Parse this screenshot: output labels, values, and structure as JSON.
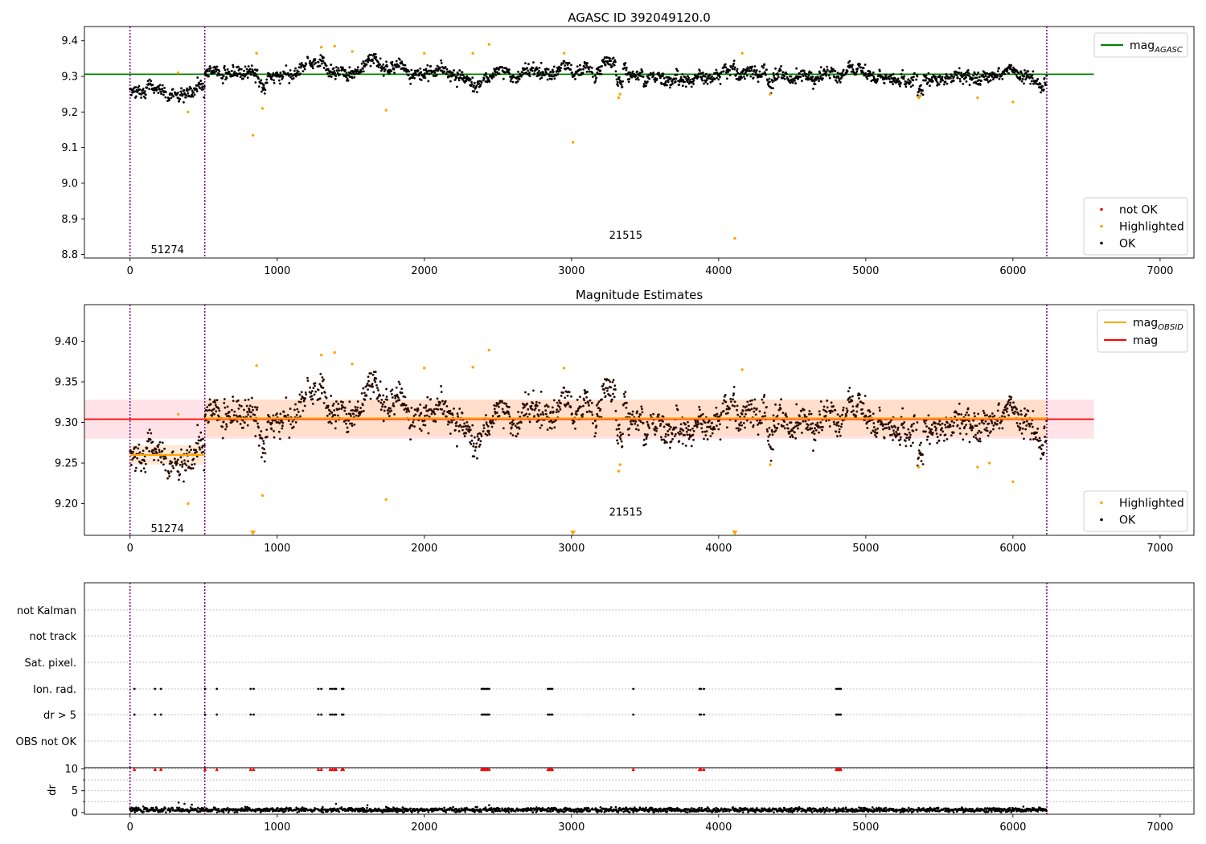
{
  "figure": {
    "background": "#ffffff"
  },
  "colors": {
    "ok": "#000000",
    "highlighted": "#ffa500",
    "not_ok": "#ff0000",
    "agasc_line": "#008000",
    "obsid_line": "#ffa500",
    "mag_line": "#ff0000",
    "obsid_boundary": "#800080",
    "mag_band": "#ffc0cb",
    "obsid_band": "#ffdab9",
    "grid": "#b0b0b0"
  },
  "chart_data": [
    {
      "id": "agasc-panel",
      "type": "scatter",
      "title": "AGASC ID 392049120.0",
      "xlim": [
        -310,
        7230
      ],
      "ylim": [
        8.79,
        9.44
      ],
      "xticks": [
        0,
        1000,
        2000,
        3000,
        4000,
        5000,
        6000,
        7000
      ],
      "yticks": [
        8.8,
        8.9,
        9.0,
        9.1,
        9.2,
        9.3,
        9.4
      ],
      "ytick_labels": [
        "8.8",
        "8.9",
        "9.0",
        "9.1",
        "9.2",
        "9.3",
        "9.4"
      ],
      "obsid_boundaries": [
        0,
        508,
        6230
      ],
      "annotations": [
        {
          "text": "51274",
          "x": 254,
          "y": 8.815
        },
        {
          "text": "21515",
          "x": 3369,
          "y": 8.855
        }
      ],
      "mag_agasc": {
        "x": [
          -310,
          6550
        ],
        "y": 9.306
      },
      "legend_upper": [
        {
          "label": "mag",
          "subscript": "AGASC",
          "color": "#008000",
          "kind": "line"
        }
      ],
      "legend_lower": [
        {
          "label": "not OK",
          "color": "#ff0000",
          "kind": "dot"
        },
        {
          "label": "Highlighted",
          "color": "#ffa500",
          "kind": "dot"
        },
        {
          "label": "OK",
          "color": "#000000",
          "kind": "dot"
        }
      ],
      "highlighted_points": [
        [
          327,
          9.31
        ],
        [
          395,
          9.2
        ],
        [
          835,
          9.135
        ],
        [
          860,
          9.365
        ],
        [
          900,
          9.21
        ],
        [
          1300,
          9.382
        ],
        [
          1390,
          9.385
        ],
        [
          1510,
          9.37
        ],
        [
          1740,
          9.205
        ],
        [
          2000,
          9.365
        ],
        [
          2330,
          9.365
        ],
        [
          2440,
          9.39
        ],
        [
          2950,
          9.365
        ],
        [
          3010,
          9.115
        ],
        [
          3320,
          9.24
        ],
        [
          3330,
          9.25
        ],
        [
          4110,
          8.845
        ],
        [
          4160,
          9.365
        ],
        [
          4350,
          9.25
        ],
        [
          5360,
          9.24
        ],
        [
          5370,
          9.245
        ],
        [
          5760,
          9.24
        ],
        [
          6000,
          9.228
        ]
      ]
    },
    {
      "id": "estimates-panel",
      "type": "scatter",
      "title": "Magnitude Estimates",
      "xlim": [
        -310,
        7230
      ],
      "ylim": [
        9.161,
        9.445
      ],
      "xticks": [
        0,
        1000,
        2000,
        3000,
        4000,
        5000,
        6000,
        7000
      ],
      "yticks": [
        9.2,
        9.25,
        9.3,
        9.35,
        9.4
      ],
      "ytick_labels": [
        "9.20",
        "9.25",
        "9.30",
        "9.35",
        "9.40"
      ],
      "obsid_boundaries": [
        0,
        508,
        6230
      ],
      "annotations": [
        {
          "text": "51274",
          "x": 254,
          "y": 9.17
        },
        {
          "text": "21515",
          "x": 3369,
          "y": 9.19
        }
      ],
      "mag": {
        "x": [
          -310,
          6550
        ],
        "y": 9.304,
        "band": [
          9.28,
          9.328
        ]
      },
      "mag_obsid": [
        {
          "x": [
            0,
            508
          ],
          "y": 9.26,
          "band": [
            9.248,
            9.272
          ]
        },
        {
          "x": [
            508,
            6230
          ],
          "y": 9.305,
          "band": [
            9.283,
            9.328
          ]
        }
      ],
      "legend_upper": [
        {
          "label": "mag",
          "subscript": "OBSID",
          "color": "#ffa500",
          "kind": "line"
        },
        {
          "label": "mag",
          "subscript": "",
          "color": "#ff0000",
          "kind": "line"
        }
      ],
      "legend_lower": [
        {
          "label": "Highlighted",
          "color": "#ffa500",
          "kind": "dot"
        },
        {
          "label": "OK",
          "color": "#000000",
          "kind": "dot"
        }
      ],
      "highlighted_points": [
        [
          327,
          9.31
        ],
        [
          395,
          9.2
        ],
        [
          860,
          9.37
        ],
        [
          900,
          9.21
        ],
        [
          1300,
          9.383
        ],
        [
          1390,
          9.386
        ],
        [
          1510,
          9.372
        ],
        [
          1740,
          9.205
        ],
        [
          2000,
          9.367
        ],
        [
          2330,
          9.368
        ],
        [
          2440,
          9.389
        ],
        [
          2950,
          9.367
        ],
        [
          3320,
          9.24
        ],
        [
          3330,
          9.248
        ],
        [
          4160,
          9.365
        ],
        [
          4350,
          9.248
        ],
        [
          5360,
          9.245
        ],
        [
          5760,
          9.245
        ],
        [
          5840,
          9.25
        ],
        [
          6000,
          9.227
        ]
      ],
      "off_scale_markers": [
        835,
        3010,
        4110
      ]
    },
    {
      "id": "flags-panel",
      "type": "scatter",
      "xlim": [
        -310,
        7230
      ],
      "categories": [
        "not Kalman",
        "not track",
        "Sat. pixel.",
        "Ion. rad.",
        "dr > 5",
        "OBS not OK"
      ],
      "obsid_boundaries": [
        0,
        508,
        6230
      ],
      "flag_times": [
        30,
        170,
        210,
        510,
        590,
        820,
        840,
        1280,
        1300,
        1360,
        1375,
        1390,
        1400,
        1440,
        1450,
        2390,
        2400,
        2410,
        2420,
        2430,
        2440,
        2840,
        2850,
        2860,
        2870,
        3420,
        3870,
        3880,
        3900,
        4800,
        4810,
        4820,
        4830
      ],
      "flagged_rows": [
        "Ion. rad.",
        "dr > 5"
      ]
    },
    {
      "id": "dr-panel",
      "type": "scatter",
      "ylabel": "dr",
      "xlim": [
        -310,
        7230
      ],
      "ylim": [
        -0.4,
        10.3
      ],
      "xticks": [
        0,
        1000,
        2000,
        3000,
        4000,
        5000,
        6000,
        7000
      ],
      "yticks": [
        0,
        5,
        10
      ],
      "ytick_labels": [
        "0",
        "5",
        "10"
      ],
      "minor_yticks": [
        2.5,
        7.5
      ],
      "obsid_boundaries": [
        0,
        508,
        6230
      ],
      "dr_typical": 0.6,
      "dr_clipped_value": 10,
      "dr_spikes": [
        [
          330,
          2.3
        ],
        [
          370,
          2.0
        ],
        [
          420,
          1.8
        ],
        [
          1400,
          2.0
        ],
        [
          2440,
          1.7
        ],
        [
          1740,
          1.3
        ]
      ]
    }
  ]
}
